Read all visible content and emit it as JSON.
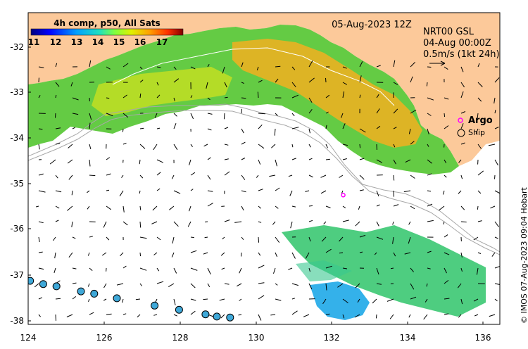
{
  "map": {
    "date_label": "05-Aug-2023 12Z",
    "colorbar": {
      "title": "4h comp, p50, All Sats",
      "ticks": [
        "11",
        "12",
        "13",
        "14",
        "15",
        "16",
        "17"
      ]
    },
    "current_info": {
      "line1": "NRT00 GSL",
      "line2": "04-Aug 00:00Z",
      "line3": "0.5m/s (1kt 24h)"
    },
    "legend": {
      "argo_label": "Argo",
      "ship_label": "Ship"
    },
    "credit": "© IMOS 07-Aug-2023 09:04 Hobart",
    "lon_ticks": [
      "124",
      "126",
      "128",
      "130",
      "132",
      "134",
      "136"
    ],
    "lat_ticks": [
      "-32",
      "-33",
      "-34",
      "-35",
      "-36",
      "-37",
      "-38"
    ],
    "colors": {
      "land": "#FCC99A",
      "argo": "#FF00FF",
      "ship_fill": "#3FA8D8"
    }
  },
  "markers": {
    "argo": [
      {
        "lon": 132.35,
        "lat": -35.28
      }
    ],
    "ship": [
      {
        "lon": 124.05,
        "lat": -37.15
      },
      {
        "lon": 124.4,
        "lat": -37.22
      },
      {
        "lon": 124.75,
        "lat": -37.27
      },
      {
        "lon": 125.4,
        "lat": -37.38
      },
      {
        "lon": 125.75,
        "lat": -37.43
      },
      {
        "lon": 126.35,
        "lat": -37.53
      },
      {
        "lon": 127.35,
        "lat": -37.69
      },
      {
        "lon": 128.0,
        "lat": -37.78
      },
      {
        "lon": 128.7,
        "lat": -37.88
      },
      {
        "lon": 129.0,
        "lat": -37.93
      },
      {
        "lon": 129.35,
        "lat": -37.95
      }
    ]
  }
}
